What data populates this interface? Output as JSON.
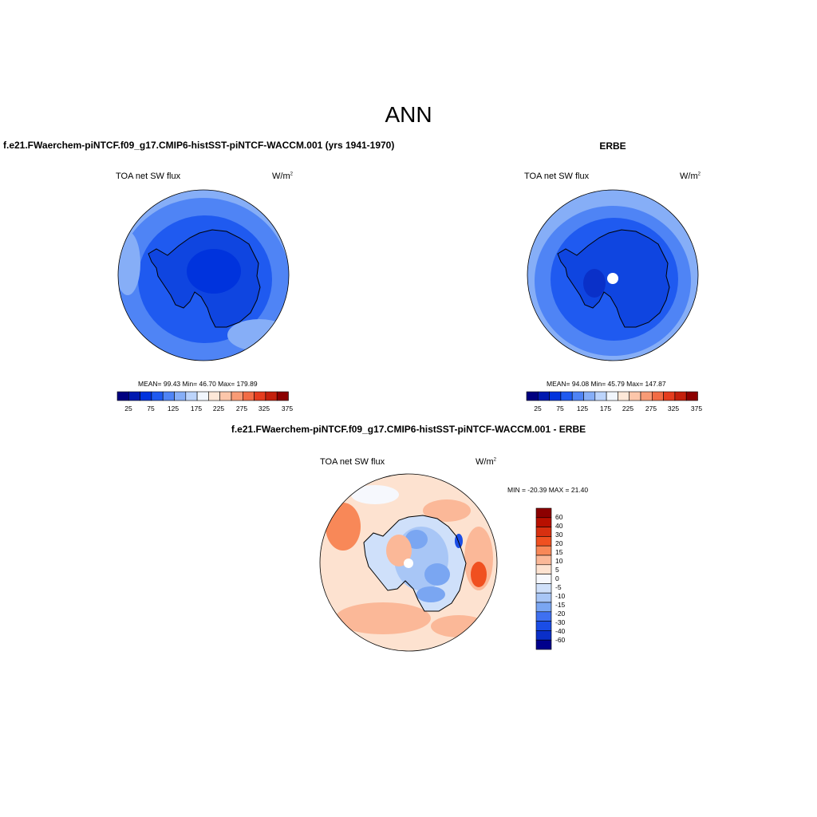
{
  "main_title": "ANN",
  "panels": [
    {
      "title": "f.e21.FWaerchem-piNTCF.f09_g17.CMIP6-histSST-piNTCF-WACCM.001 (yrs 1941-1970)",
      "field": "TOA net SW flux",
      "units_base": "W/m",
      "units_exp": "2",
      "stats": "MEAN=  99.43  Min=  46.70  Max= 179.89",
      "colorbar_ticks": [
        "25",
        "75",
        "125",
        "175",
        "225",
        "275",
        "325",
        "375"
      ]
    },
    {
      "title": "ERBE",
      "field": "TOA net SW flux",
      "units_base": "W/m",
      "units_exp": "2",
      "stats": "MEAN=  94.08  Min=  45.79  Max= 147.87",
      "colorbar_ticks": [
        "25",
        "75",
        "125",
        "175",
        "225",
        "275",
        "325",
        "375"
      ]
    },
    {
      "title": "f.e21.FWaerchem-piNTCF.f09_g17.CMIP6-histSST-piNTCF-WACCM.001 - ERBE",
      "field": "TOA net SW flux",
      "units_base": "W/m",
      "units_exp": "2",
      "stats": "MIN = -20.39 MAX =  21.40",
      "colorbar_ticks": [
        "60",
        "40",
        "30",
        "20",
        "15",
        "10",
        "5",
        "0",
        "-5",
        "-10",
        "-15",
        "-20",
        "-30",
        "-40",
        "-60"
      ]
    }
  ],
  "colors": {
    "abs_scale": [
      "#000080",
      "#0019b0",
      "#0033dd",
      "#1f5af0",
      "#4f84f5",
      "#86aef7",
      "#bcd4fb",
      "#f1f6fd",
      "#fde8d8",
      "#fcc6aa",
      "#f89b76",
      "#f26c45",
      "#e53d1e",
      "#c4200c",
      "#8c0000"
    ],
    "diff_scale": [
      "#8c0000",
      "#b81000",
      "#d83010",
      "#f05020",
      "#f88858",
      "#fbb898",
      "#fde2d0",
      "#f6f8fd",
      "#cfe0fa",
      "#a8c6f6",
      "#7aa6f2",
      "#3f70f0",
      "#1a4de6",
      "#0a2fc8",
      "#00008c"
    ]
  }
}
